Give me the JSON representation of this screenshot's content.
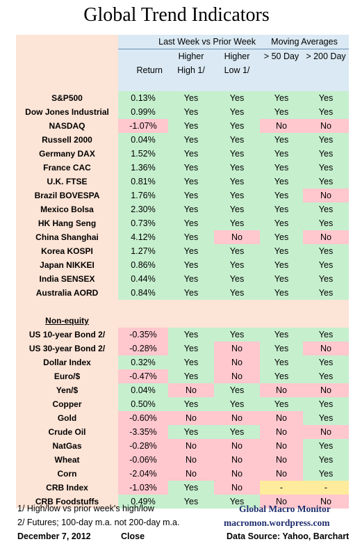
{
  "title": "Global Trend Indicators",
  "header": {
    "group1": "Last Week vs Prior Week",
    "group2": "Moving Averages",
    "col_return": "Return",
    "col_higher_high_top": "Higher",
    "col_higher_high_bottom": "High 1/",
    "col_higher_low_top": "Higher",
    "col_higher_low_bottom": "Low 1/",
    "col_50day": "> 50 Day",
    "col_200day": "> 200 Day"
  },
  "equity_rows": [
    {
      "name": "S&P500",
      "ret": "0.13%",
      "hh": "Yes",
      "hl": "Yes",
      "d50": "Yes",
      "d200": "Yes"
    },
    {
      "name": "Dow Jones Industrial",
      "ret": "0.99%",
      "hh": "Yes",
      "hl": "Yes",
      "d50": "Yes",
      "d200": "Yes"
    },
    {
      "name": "NASDAQ",
      "ret": "-1.07%",
      "hh": "Yes",
      "hl": "Yes",
      "d50": "No",
      "d200": "No"
    },
    {
      "name": "Russell 2000",
      "ret": "0.04%",
      "hh": "Yes",
      "hl": "Yes",
      "d50": "Yes",
      "d200": "Yes"
    },
    {
      "name": "Germany DAX",
      "ret": "1.52%",
      "hh": "Yes",
      "hl": "Yes",
      "d50": "Yes",
      "d200": "Yes"
    },
    {
      "name": "France CAC",
      "ret": "1.36%",
      "hh": "Yes",
      "hl": "Yes",
      "d50": "Yes",
      "d200": "Yes"
    },
    {
      "name": "U.K. FTSE",
      "ret": "0.81%",
      "hh": "Yes",
      "hl": "Yes",
      "d50": "Yes",
      "d200": "Yes"
    },
    {
      "name": "Brazil BOVESPA",
      "ret": "1.76%",
      "hh": "Yes",
      "hl": "Yes",
      "d50": "Yes",
      "d200": "No"
    },
    {
      "name": "Mexico Bolsa",
      "ret": "2.30%",
      "hh": "Yes",
      "hl": "Yes",
      "d50": "Yes",
      "d200": "Yes"
    },
    {
      "name": "HK  Hang Seng",
      "ret": "0.73%",
      "hh": "Yes",
      "hl": "Yes",
      "d50": "Yes",
      "d200": "Yes"
    },
    {
      "name": "China Shanghai",
      "ret": "4.12%",
      "hh": "Yes",
      "hl": "No",
      "d50": "Yes",
      "d200": "No"
    },
    {
      "name": "Korea KOSPI",
      "ret": "1.27%",
      "hh": "Yes",
      "hl": "Yes",
      "d50": "Yes",
      "d200": "Yes"
    },
    {
      "name": "Japan NIKKEI",
      "ret": "0.86%",
      "hh": "Yes",
      "hl": "Yes",
      "d50": "Yes",
      "d200": "Yes"
    },
    {
      "name": "India SENSEX",
      "ret": "0.44%",
      "hh": "Yes",
      "hl": "Yes",
      "d50": "Yes",
      "d200": "Yes"
    },
    {
      "name": "Australia AORD",
      "ret": "0.84%",
      "hh": "Yes",
      "hl": "Yes",
      "d50": "Yes",
      "d200": "Yes"
    }
  ],
  "non_equity_label": "Non-equity",
  "non_equity_rows": [
    {
      "name": "US 10-year Bond 2/",
      "ret": "-0.35%",
      "hh": "Yes",
      "hl": "Yes",
      "d50": "Yes",
      "d200": "Yes"
    },
    {
      "name": "US 30-year Bond 2/",
      "ret": "-0.28%",
      "hh": "Yes",
      "hl": "No",
      "d50": "Yes",
      "d200": "No"
    },
    {
      "name": "Dollar Index",
      "ret": "0.32%",
      "hh": "Yes",
      "hl": "No",
      "d50": "Yes",
      "d200": "Yes"
    },
    {
      "name": "Euro/$",
      "ret": "-0.47%",
      "hh": "Yes",
      "hl": "No",
      "d50": "Yes",
      "d200": "Yes"
    },
    {
      "name": "Yen/$",
      "ret": "0.04%",
      "hh": "No",
      "hl": "Yes",
      "d50": "No",
      "d200": "No"
    },
    {
      "name": "Copper",
      "ret": "0.50%",
      "hh": "Yes",
      "hl": "Yes",
      "d50": "Yes",
      "d200": "Yes"
    },
    {
      "name": "Gold",
      "ret": "-0.60%",
      "hh": "No",
      "hl": "No",
      "d50": "No",
      "d200": "Yes"
    },
    {
      "name": "Crude Oil",
      "ret": "-3.35%",
      "hh": "Yes",
      "hl": "Yes",
      "d50": "No",
      "d200": "No"
    },
    {
      "name": "NatGas",
      "ret": "-0.28%",
      "hh": "No",
      "hl": "No",
      "d50": "No",
      "d200": "Yes"
    },
    {
      "name": "Wheat",
      "ret": "-0.06%",
      "hh": "No",
      "hl": "No",
      "d50": "No",
      "d200": "Yes"
    },
    {
      "name": "Corn",
      "ret": "-2.04%",
      "hh": "No",
      "hl": "No",
      "d50": "No",
      "d200": "Yes"
    },
    {
      "name": "CRB Index",
      "ret": "-1.03%",
      "hh": "Yes",
      "hl": "No",
      "d50": "-",
      "d200": "-"
    },
    {
      "name": "CRB Foodstuffs",
      "ret": "0.49%",
      "hh": "Yes",
      "hl": "Yes",
      "d50": "No",
      "d200": "No"
    }
  ],
  "footer": {
    "note1": "1/  High/low vs prior week's high/low",
    "note2": "2/  Futures;  100-day m.a. not 200-day m.a.",
    "date": "December 7, 2012",
    "close": "Close",
    "brand": "Global Macro Monitor",
    "site": "macromon.wordpress.com",
    "source": "Data Source: Yahoo, Barchart"
  },
  "colors": {
    "peach": "#fce4d6",
    "blue": "#dae9f3",
    "green": "#c6efce",
    "red": "#ffc7ce",
    "yellow": "#ffeb9c",
    "brand": "#1f2e6e"
  }
}
